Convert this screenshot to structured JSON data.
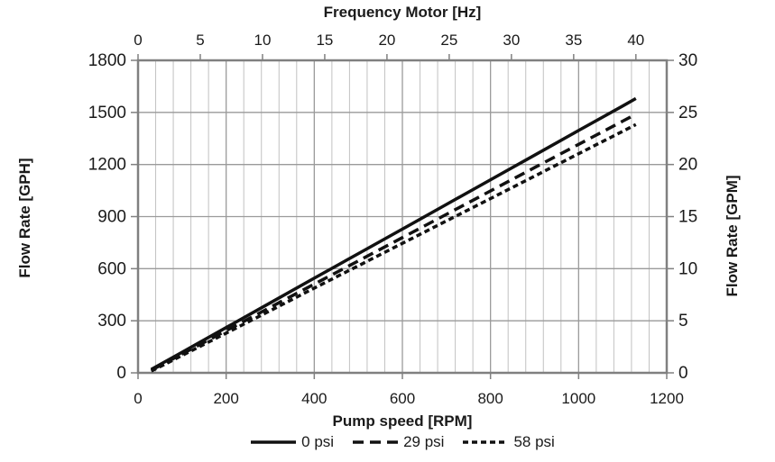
{
  "chart_data": {
    "type": "line",
    "top_axis": {
      "title": "Frequency Motor [Hz]",
      "ticks": [
        0,
        5,
        10,
        15,
        20,
        25,
        30,
        35,
        40
      ],
      "rpm_per_hz": 28.25
    },
    "xlabel": "Pump speed [RPM]",
    "ylabel_left": "Flow Rate [GPH]",
    "ylabel_right": "Flow Rate [GPM]",
    "x_axis": {
      "min": 0,
      "max": 1200,
      "major_ticks": [
        0,
        200,
        400,
        600,
        800,
        1000,
        1200
      ],
      "minor_step": 40
    },
    "y_axis_left": {
      "min": 0,
      "max": 1800,
      "ticks": [
        0,
        300,
        600,
        900,
        1200,
        1500,
        1800
      ]
    },
    "y_axis_right": {
      "min": 0,
      "max": 30,
      "ticks": [
        0,
        5,
        10,
        15,
        20,
        25,
        30
      ]
    },
    "grid": {
      "horizontal": "major-only",
      "vertical": "major-and-minor"
    },
    "legend_position": "bottom-center",
    "series": [
      {
        "name": "0 psi",
        "line_style": "solid",
        "x": [
          30,
          100,
          200,
          300,
          400,
          500,
          600,
          700,
          800,
          900,
          1000,
          1100,
          1130
        ],
        "y_gph": [
          20,
          119,
          261,
          403,
          545,
          687,
          828,
          970,
          1112,
          1254,
          1396,
          1537,
          1580
        ]
      },
      {
        "name": "29 psi",
        "line_style": "dashed",
        "x": [
          30,
          100,
          200,
          300,
          400,
          500,
          600,
          700,
          800,
          900,
          1000,
          1100,
          1130
        ],
        "y_gph": [
          15,
          109,
          243,
          377,
          511,
          645,
          779,
          913,
          1048,
          1182,
          1316,
          1450,
          1490
        ]
      },
      {
        "name": "58 psi",
        "line_style": "short-dashed",
        "x": [
          30,
          100,
          200,
          300,
          400,
          500,
          600,
          700,
          800,
          900,
          1000,
          1100,
          1130
        ],
        "y_gph": [
          10,
          100,
          229,
          358,
          488,
          617,
          746,
          875,
          1004,
          1133,
          1262,
          1391,
          1430
        ]
      }
    ]
  },
  "colors": {
    "background": "#ffffff",
    "text": "#1a1a1a",
    "series_line": "#111111",
    "axis_border": "#808080",
    "grid_major": "#9a9a9a",
    "grid_minor": "#c2c2c2"
  }
}
